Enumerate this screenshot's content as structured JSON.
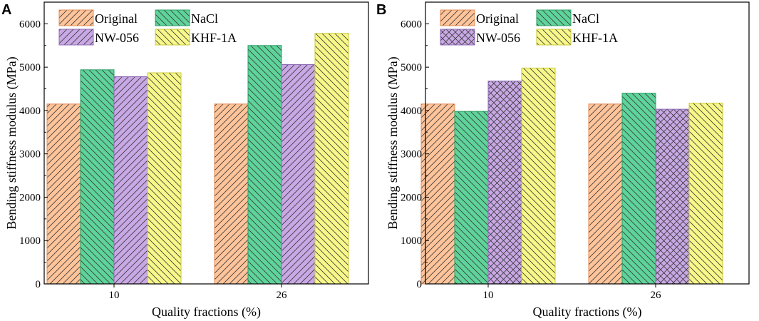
{
  "chart_data": [
    {
      "panel": "A",
      "type": "bar",
      "categories": [
        "10",
        "26"
      ],
      "series": [
        {
          "name": "Original",
          "values": [
            4150,
            4150
          ],
          "color": "#FFC49A",
          "edge": "#E08C55",
          "pattern": "diag-forward"
        },
        {
          "name": "NaCl",
          "values": [
            4940,
            5500
          ],
          "color": "#5ED49A",
          "edge": "#2E9E66",
          "pattern": "diag-back"
        },
        {
          "name": "NW-056",
          "values": [
            4780,
            5060
          ],
          "color": "#C9A8E6",
          "edge": "#8E6BB5",
          "pattern": "diag-forward"
        },
        {
          "name": "KHF-1A",
          "values": [
            4870,
            5780
          ],
          "color": "#F8F88A",
          "edge": "#C9C93A",
          "pattern": "diag-back"
        }
      ],
      "xlabel": "Quality fractions (%)",
      "ylabel": "Bending stiffness modulus (MPa)",
      "ylim": [
        0,
        6500
      ],
      "yticks": [
        "0",
        "1000",
        "2000",
        "3000",
        "4000",
        "5000",
        "6000"
      ],
      "grid": false,
      "legend": "top-left"
    },
    {
      "panel": "B",
      "type": "bar",
      "categories": [
        "10",
        "26"
      ],
      "series": [
        {
          "name": "Original",
          "values": [
            4150,
            4150
          ],
          "color": "#FFC49A",
          "edge": "#E08C55",
          "pattern": "diag-forward"
        },
        {
          "name": "NaCl",
          "values": [
            3980,
            4400
          ],
          "color": "#5ED49A",
          "edge": "#2E9E66",
          "pattern": "diag-back"
        },
        {
          "name": "NW-056",
          "values": [
            4680,
            4030
          ],
          "color": "#C9A8E6",
          "edge": "#8E6BB5",
          "pattern": "crosshatch"
        },
        {
          "name": "KHF-1A",
          "values": [
            4980,
            4170
          ],
          "color": "#F8F88A",
          "edge": "#C9C93A",
          "pattern": "diag-back"
        }
      ],
      "xlabel": "Quality fractions (%)",
      "ylabel": "Bending stiffness modulus (MPa)",
      "ylim": [
        0,
        6500
      ],
      "yticks": [
        "0",
        "1000",
        "2000",
        "3000",
        "4000",
        "5000",
        "6000"
      ],
      "grid": false,
      "legend": "top-left"
    }
  ]
}
